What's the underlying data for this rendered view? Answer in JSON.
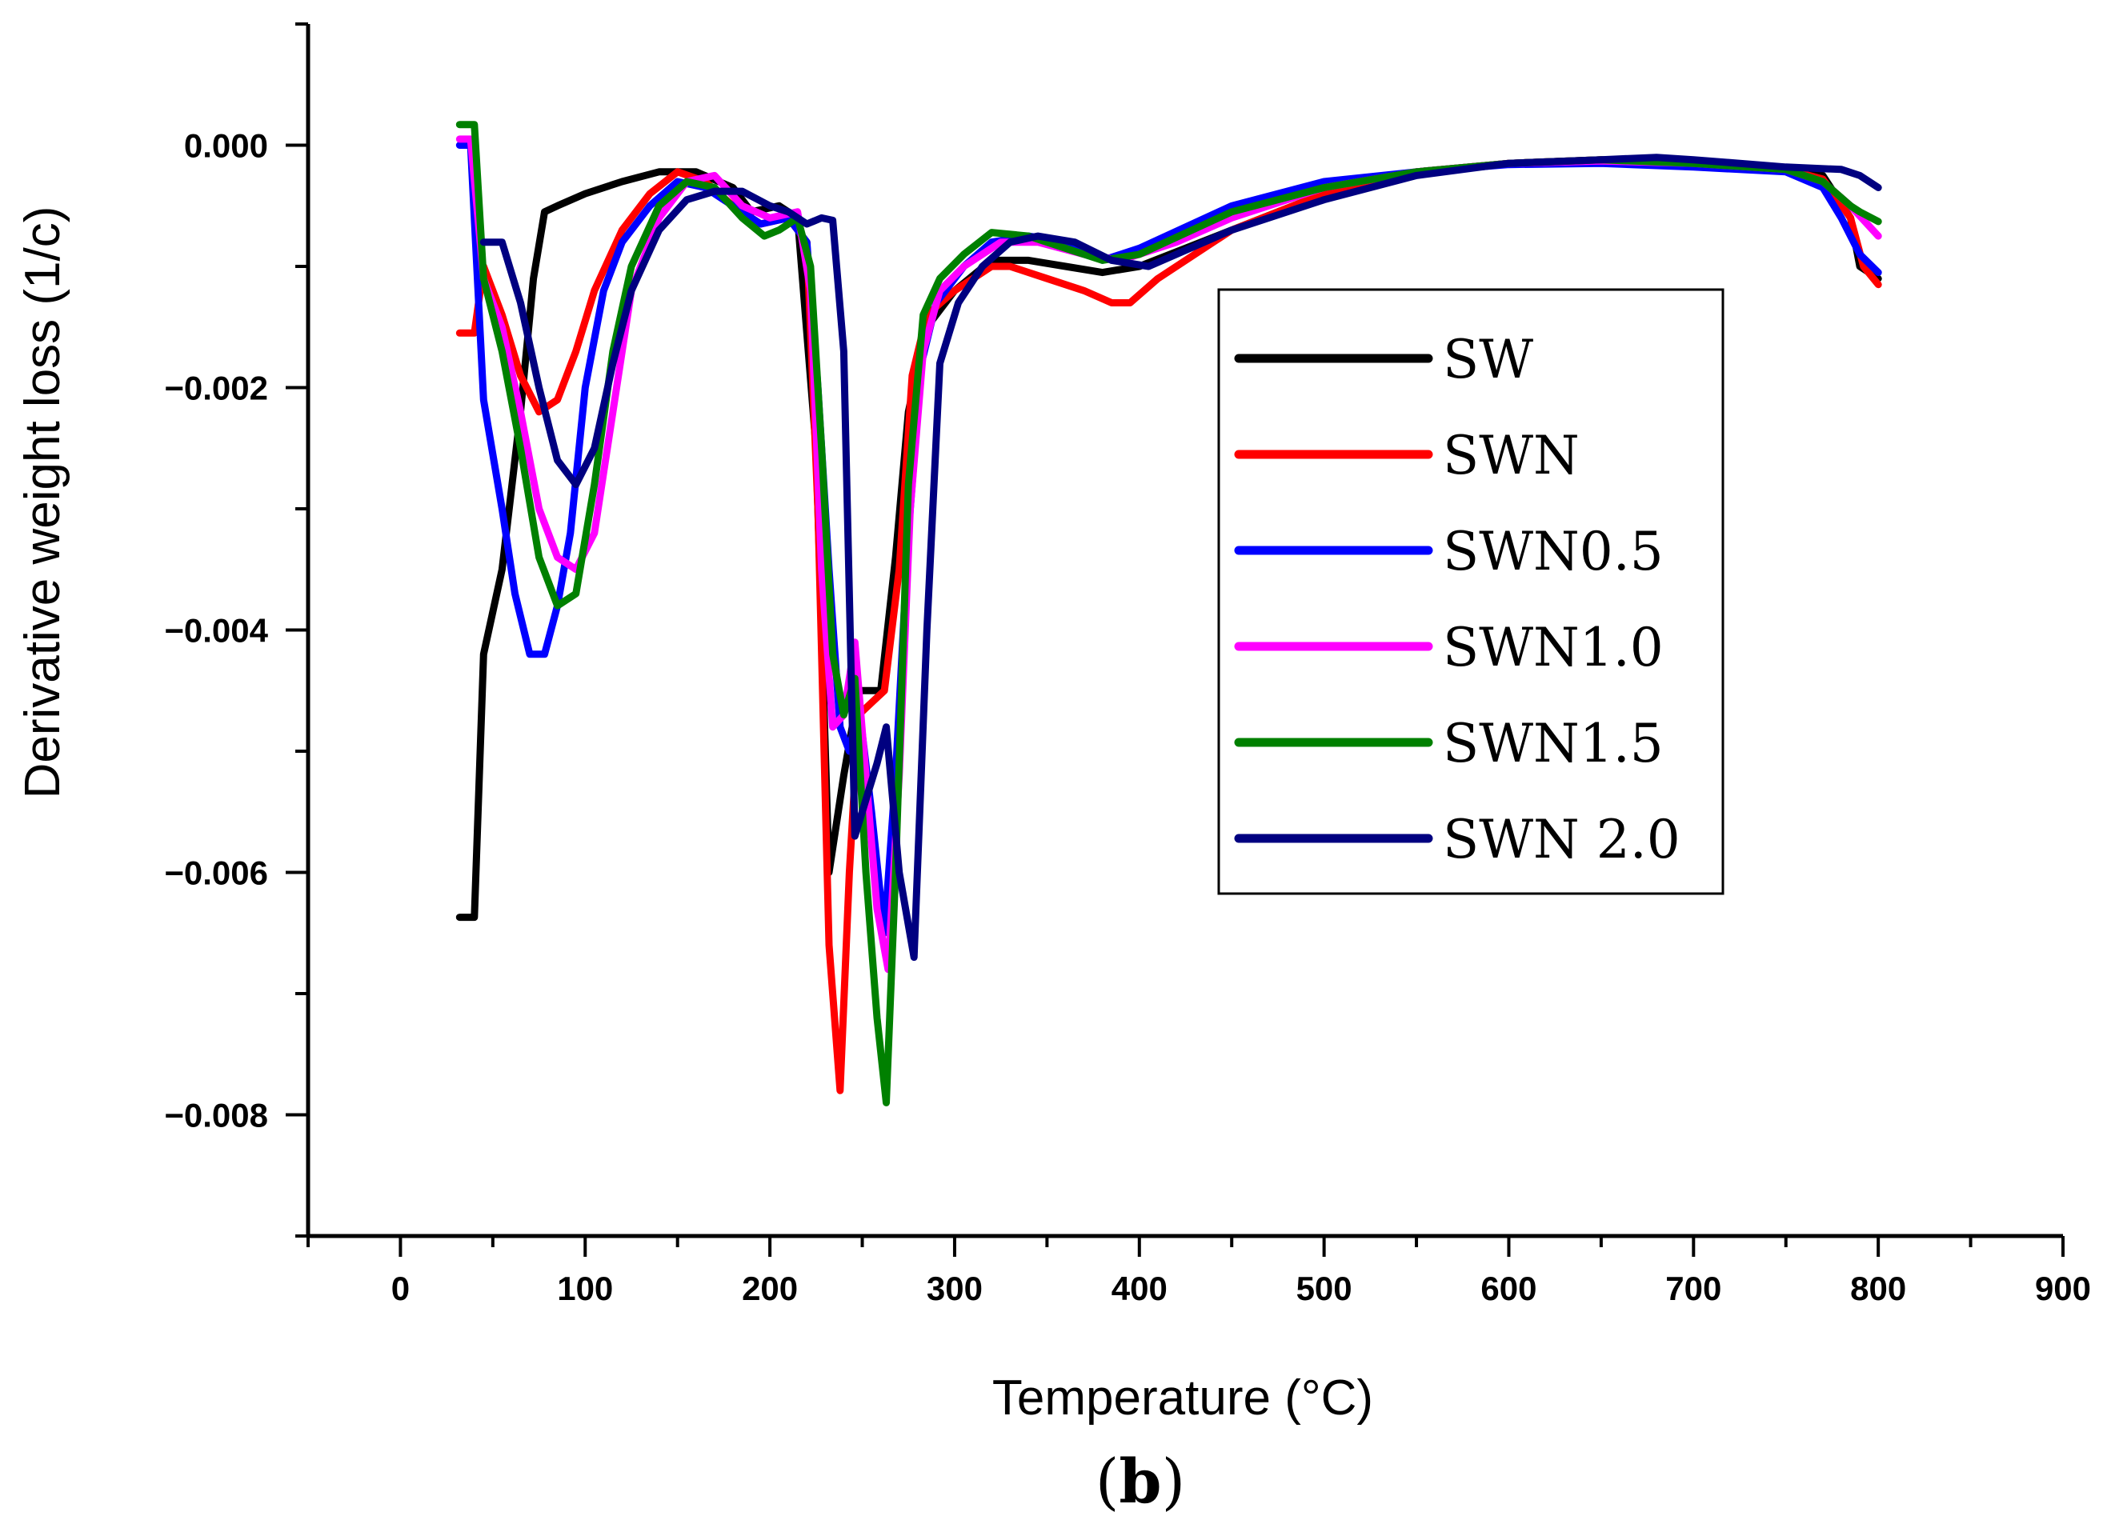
{
  "chart_data": {
    "type": "line",
    "title": "",
    "xlabel": "Temperature (°C)",
    "ylabel": "Derivative weight loss (1/c)",
    "caption": {
      "open": "(",
      "letter": "b",
      "close": ")"
    },
    "xlim": [
      -50,
      900
    ],
    "ylim": [
      -0.009,
      0.001
    ],
    "x_ticks": [
      0,
      100,
      200,
      300,
      400,
      500,
      600,
      700,
      800,
      900
    ],
    "x_tick_labels": [
      "0",
      "100",
      "200",
      "300",
      "400",
      "500",
      "600",
      "700",
      "800",
      "900"
    ],
    "y_ticks": [
      0,
      -0.002,
      -0.004,
      -0.006,
      -0.008
    ],
    "y_tick_labels": [
      "0.000",
      "−0.002",
      "−0.004",
      "−0.006",
      "−0.008"
    ],
    "grid": false,
    "legend_position": "right",
    "series": [
      {
        "name": "SW",
        "color": "#000000",
        "points": [
          [
            32,
            -0.00637
          ],
          [
            40,
            -0.00637
          ],
          [
            45,
            -0.0042
          ],
          [
            55,
            -0.0035
          ],
          [
            65,
            -0.0022
          ],
          [
            72,
            -0.0011
          ],
          [
            78,
            -0.00055
          ],
          [
            85,
            -0.0005
          ],
          [
            100,
            -0.0004
          ],
          [
            120,
            -0.0003
          ],
          [
            140,
            -0.00022
          ],
          [
            160,
            -0.00022
          ],
          [
            180,
            -0.00035
          ],
          [
            190,
            -0.00055
          ],
          [
            205,
            -0.0005
          ],
          [
            215,
            -0.0006
          ],
          [
            225,
            -0.0025
          ],
          [
            232,
            -0.006
          ],
          [
            240,
            -0.0052
          ],
          [
            248,
            -0.0045
          ],
          [
            260,
            -0.0045
          ],
          [
            268,
            -0.0034
          ],
          [
            275,
            -0.0022
          ],
          [
            285,
            -0.0015
          ],
          [
            300,
            -0.0012
          ],
          [
            320,
            -0.00095
          ],
          [
            340,
            -0.00095
          ],
          [
            360,
            -0.001
          ],
          [
            380,
            -0.00105
          ],
          [
            400,
            -0.001
          ],
          [
            450,
            -0.0007
          ],
          [
            500,
            -0.0004
          ],
          [
            550,
            -0.00022
          ],
          [
            600,
            -0.00015
          ],
          [
            650,
            -0.00012
          ],
          [
            700,
            -0.00015
          ],
          [
            750,
            -0.0002
          ],
          [
            770,
            -0.00025
          ],
          [
            785,
            -0.0006
          ],
          [
            790,
            -0.001
          ],
          [
            800,
            -0.0011
          ]
        ]
      },
      {
        "name": "SWN",
        "color": "#ff0000",
        "points": [
          [
            32,
            -0.00155
          ],
          [
            40,
            -0.00155
          ],
          [
            45,
            -0.001
          ],
          [
            55,
            -0.0014
          ],
          [
            65,
            -0.0019
          ],
          [
            75,
            -0.0022
          ],
          [
            85,
            -0.0021
          ],
          [
            95,
            -0.0017
          ],
          [
            105,
            -0.0012
          ],
          [
            120,
            -0.0007
          ],
          [
            135,
            -0.0004
          ],
          [
            150,
            -0.00022
          ],
          [
            165,
            -0.0003
          ],
          [
            180,
            -0.0005
          ],
          [
            195,
            -0.00065
          ],
          [
            210,
            -0.0006
          ],
          [
            220,
            -0.0008
          ],
          [
            226,
            -0.003
          ],
          [
            232,
            -0.0066
          ],
          [
            238,
            -0.0078
          ],
          [
            243,
            -0.006
          ],
          [
            248,
            -0.0047
          ],
          [
            255,
            -0.0046
          ],
          [
            262,
            -0.0045
          ],
          [
            270,
            -0.0035
          ],
          [
            277,
            -0.0019
          ],
          [
            285,
            -0.0014
          ],
          [
            300,
            -0.0012
          ],
          [
            320,
            -0.001
          ],
          [
            330,
            -0.001
          ],
          [
            350,
            -0.0011
          ],
          [
            370,
            -0.0012
          ],
          [
            385,
            -0.0013
          ],
          [
            395,
            -0.0013
          ],
          [
            410,
            -0.0011
          ],
          [
            450,
            -0.0007
          ],
          [
            500,
            -0.0004
          ],
          [
            550,
            -0.00022
          ],
          [
            600,
            -0.00015
          ],
          [
            650,
            -0.00012
          ],
          [
            700,
            -0.00015
          ],
          [
            750,
            -0.0002
          ],
          [
            770,
            -0.00028
          ],
          [
            785,
            -0.0006
          ],
          [
            792,
            -0.001
          ],
          [
            800,
            -0.00115
          ]
        ]
      },
      {
        "name": "SWN0.5",
        "color": "#0000ff",
        "points": [
          [
            32,
            0.0
          ],
          [
            38,
            0.0
          ],
          [
            45,
            -0.0021
          ],
          [
            55,
            -0.003
          ],
          [
            62,
            -0.0037
          ],
          [
            70,
            -0.0042
          ],
          [
            78,
            -0.0042
          ],
          [
            85,
            -0.0038
          ],
          [
            92,
            -0.0032
          ],
          [
            100,
            -0.002
          ],
          [
            110,
            -0.0012
          ],
          [
            120,
            -0.0008
          ],
          [
            135,
            -0.0005
          ],
          [
            150,
            -0.0003
          ],
          [
            165,
            -0.00035
          ],
          [
            180,
            -0.0005
          ],
          [
            195,
            -0.00065
          ],
          [
            210,
            -0.0006
          ],
          [
            220,
            -0.0008
          ],
          [
            226,
            -0.002
          ],
          [
            232,
            -0.0035
          ],
          [
            238,
            -0.0048
          ],
          [
            243,
            -0.005
          ],
          [
            248,
            -0.0046
          ],
          [
            255,
            -0.0055
          ],
          [
            262,
            -0.0065
          ],
          [
            268,
            -0.0052
          ],
          [
            275,
            -0.0032
          ],
          [
            282,
            -0.0018
          ],
          [
            290,
            -0.0013
          ],
          [
            305,
            -0.001
          ],
          [
            320,
            -0.0008
          ],
          [
            340,
            -0.00075
          ],
          [
            360,
            -0.0008
          ],
          [
            380,
            -0.00095
          ],
          [
            400,
            -0.00085
          ],
          [
            450,
            -0.0005
          ],
          [
            500,
            -0.0003
          ],
          [
            550,
            -0.00022
          ],
          [
            600,
            -0.00016
          ],
          [
            650,
            -0.00015
          ],
          [
            700,
            -0.00018
          ],
          [
            750,
            -0.00022
          ],
          [
            770,
            -0.00035
          ],
          [
            780,
            -0.0006
          ],
          [
            790,
            -0.0009
          ],
          [
            800,
            -0.00105
          ]
        ]
      },
      {
        "name": "SWN1.0",
        "color": "#ff00ff",
        "points": [
          [
            32,
            5e-05
          ],
          [
            38,
            5e-05
          ],
          [
            45,
            -0.0011
          ],
          [
            55,
            -0.0015
          ],
          [
            65,
            -0.0022
          ],
          [
            75,
            -0.003
          ],
          [
            85,
            -0.0034
          ],
          [
            95,
            -0.0035
          ],
          [
            105,
            -0.0032
          ],
          [
            115,
            -0.0022
          ],
          [
            125,
            -0.0012
          ],
          [
            140,
            -0.0006
          ],
          [
            155,
            -0.0003
          ],
          [
            170,
            -0.00025
          ],
          [
            185,
            -0.0005
          ],
          [
            200,
            -0.0006
          ],
          [
            215,
            -0.00055
          ],
          [
            222,
            -0.0012
          ],
          [
            228,
            -0.0035
          ],
          [
            234,
            -0.0048
          ],
          [
            240,
            -0.0047
          ],
          [
            246,
            -0.0041
          ],
          [
            252,
            -0.0052
          ],
          [
            258,
            -0.0063
          ],
          [
            264,
            -0.0068
          ],
          [
            270,
            -0.0052
          ],
          [
            276,
            -0.003
          ],
          [
            283,
            -0.0017
          ],
          [
            292,
            -0.0012
          ],
          [
            305,
            -0.001
          ],
          [
            325,
            -0.0008
          ],
          [
            345,
            -0.0008
          ],
          [
            370,
            -0.0009
          ],
          [
            390,
            -0.00095
          ],
          [
            420,
            -0.0008
          ],
          [
            450,
            -0.0006
          ],
          [
            500,
            -0.00035
          ],
          [
            550,
            -0.00022
          ],
          [
            600,
            -0.00015
          ],
          [
            650,
            -0.00013
          ],
          [
            700,
            -0.00015
          ],
          [
            750,
            -0.0002
          ],
          [
            770,
            -0.0003
          ],
          [
            785,
            -0.0005
          ],
          [
            800,
            -0.00075
          ]
        ]
      },
      {
        "name": "SWN1.5",
        "color": "#008000",
        "points": [
          [
            32,
            0.00017
          ],
          [
            40,
            0.00017
          ],
          [
            45,
            -0.0011
          ],
          [
            55,
            -0.0017
          ],
          [
            65,
            -0.0025
          ],
          [
            75,
            -0.0034
          ],
          [
            85,
            -0.0038
          ],
          [
            95,
            -0.0037
          ],
          [
            105,
            -0.0028
          ],
          [
            115,
            -0.0017
          ],
          [
            125,
            -0.001
          ],
          [
            140,
            -0.0005
          ],
          [
            155,
            -0.0003
          ],
          [
            170,
            -0.00035
          ],
          [
            185,
            -0.0006
          ],
          [
            197,
            -0.00075
          ],
          [
            205,
            -0.0007
          ],
          [
            215,
            -0.0006
          ],
          [
            222,
            -0.001
          ],
          [
            228,
            -0.0025
          ],
          [
            234,
            -0.0042
          ],
          [
            240,
            -0.0047
          ],
          [
            246,
            -0.0044
          ],
          [
            252,
            -0.006
          ],
          [
            258,
            -0.0072
          ],
          [
            263,
            -0.0079
          ],
          [
            268,
            -0.006
          ],
          [
            275,
            -0.0028
          ],
          [
            283,
            -0.0014
          ],
          [
            292,
            -0.0011
          ],
          [
            305,
            -0.0009
          ],
          [
            320,
            -0.00072
          ],
          [
            340,
            -0.00075
          ],
          [
            360,
            -0.00085
          ],
          [
            380,
            -0.00095
          ],
          [
            400,
            -0.0009
          ],
          [
            450,
            -0.00055
          ],
          [
            500,
            -0.00035
          ],
          [
            550,
            -0.00022
          ],
          [
            600,
            -0.00015
          ],
          [
            650,
            -0.00012
          ],
          [
            700,
            -0.00015
          ],
          [
            750,
            -0.0002
          ],
          [
            770,
            -0.0003
          ],
          [
            785,
            -0.0005
          ],
          [
            790,
            -0.00055
          ],
          [
            800,
            -0.00063
          ]
        ]
      },
      {
        "name": "SWN 2.0",
        "color": "#000080",
        "points": [
          [
            45,
            -0.0008
          ],
          [
            55,
            -0.0008
          ],
          [
            65,
            -0.0013
          ],
          [
            75,
            -0.002
          ],
          [
            85,
            -0.0026
          ],
          [
            95,
            -0.0028
          ],
          [
            105,
            -0.0025
          ],
          [
            115,
            -0.0018
          ],
          [
            125,
            -0.0012
          ],
          [
            140,
            -0.0007
          ],
          [
            155,
            -0.00045
          ],
          [
            170,
            -0.00038
          ],
          [
            185,
            -0.00038
          ],
          [
            200,
            -0.0005
          ],
          [
            210,
            -0.00055
          ],
          [
            220,
            -0.00065
          ],
          [
            228,
            -0.0006
          ],
          [
            234,
            -0.00062
          ],
          [
            240,
            -0.0017
          ],
          [
            246,
            -0.0057
          ],
          [
            252,
            -0.0054
          ],
          [
            258,
            -0.0051
          ],
          [
            263,
            -0.0048
          ],
          [
            270,
            -0.006
          ],
          [
            278,
            -0.0067
          ],
          [
            285,
            -0.004
          ],
          [
            292,
            -0.0018
          ],
          [
            302,
            -0.0013
          ],
          [
            315,
            -0.001
          ],
          [
            330,
            -0.0008
          ],
          [
            345,
            -0.00075
          ],
          [
            365,
            -0.0008
          ],
          [
            385,
            -0.00095
          ],
          [
            405,
            -0.001
          ],
          [
            420,
            -0.0009
          ],
          [
            450,
            -0.0007
          ],
          [
            500,
            -0.00045
          ],
          [
            550,
            -0.00025
          ],
          [
            600,
            -0.00015
          ],
          [
            650,
            -0.00012
          ],
          [
            680,
            -0.0001
          ],
          [
            700,
            -0.00012
          ],
          [
            750,
            -0.00018
          ],
          [
            780,
            -0.0002
          ],
          [
            790,
            -0.00025
          ],
          [
            800,
            -0.00035
          ]
        ]
      }
    ]
  }
}
